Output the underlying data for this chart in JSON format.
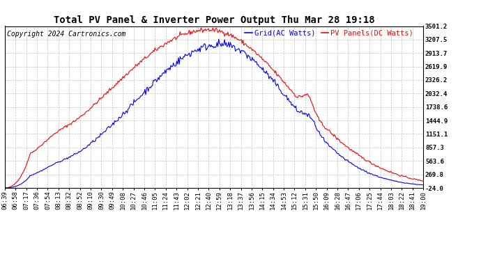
{
  "title": "Total PV Panel & Inverter Power Output Thu Mar 28 19:18",
  "copyright": "Copyright 2024 Cartronics.com",
  "legend_ac": "Grid(AC Watts)",
  "legend_dc": "PV Panels(DC Watts)",
  "color_ac": "blue",
  "color_dc": "red",
  "yticks": [
    -24.0,
    269.8,
    563.6,
    857.3,
    1151.1,
    1444.9,
    1738.6,
    2032.4,
    2326.2,
    2619.9,
    2913.7,
    3207.5,
    3501.2
  ],
  "xtick_labels": [
    "06:39",
    "06:58",
    "07:17",
    "07:36",
    "07:54",
    "08:13",
    "08:32",
    "08:52",
    "09:10",
    "09:30",
    "09:49",
    "10:08",
    "10:27",
    "10:46",
    "11:05",
    "11:24",
    "11:43",
    "12:02",
    "12:21",
    "12:40",
    "12:59",
    "13:18",
    "13:37",
    "13:56",
    "14:15",
    "14:34",
    "14:53",
    "15:12",
    "15:31",
    "15:50",
    "16:09",
    "16:28",
    "16:47",
    "17:06",
    "17:25",
    "17:44",
    "18:03",
    "18:22",
    "18:41",
    "19:00"
  ],
  "ymin": -24.0,
  "ymax": 3501.2,
  "background_color": "#ffffff",
  "grid_color": "#aaaaaa",
  "title_fontsize": 10,
  "copyright_fontsize": 7,
  "legend_fontsize": 7.5,
  "tick_fontsize": 6.5
}
